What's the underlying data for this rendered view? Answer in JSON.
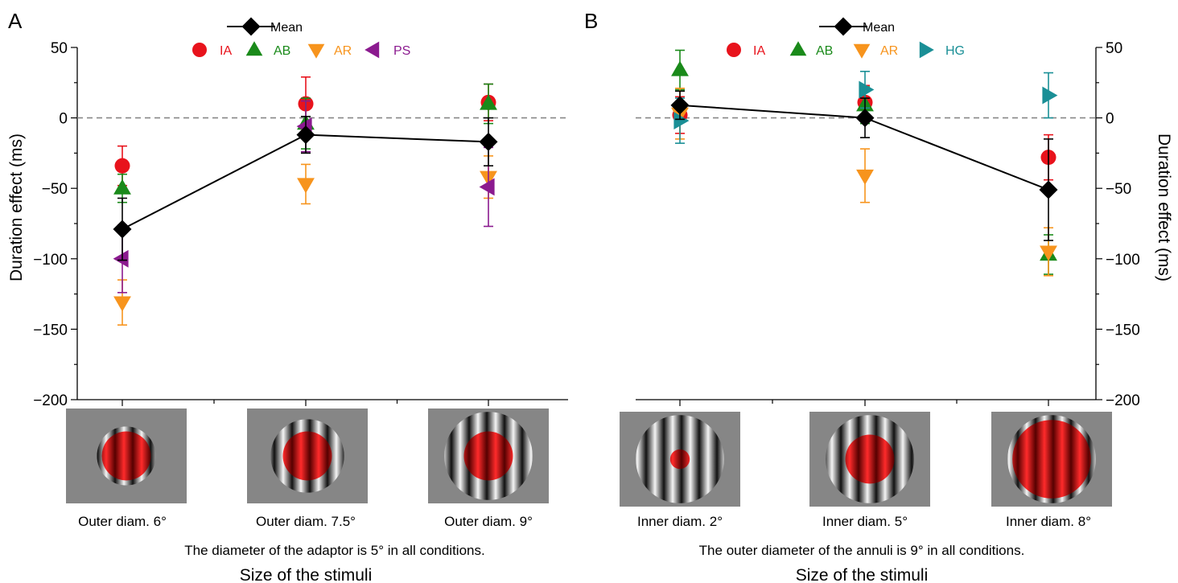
{
  "panels": [
    {
      "letter": "A",
      "conditions": [
        "Outer diam. 6°",
        "Outer diam. 7.5°",
        "Outer diam. 9°"
      ],
      "note": "The diameter of the adaptor is 5° in all conditions.",
      "xlabel": "Size of the stimuli",
      "stimuli": [
        {
          "outer": 6,
          "inner": 5
        },
        {
          "outer": 7.5,
          "inner": 5
        },
        {
          "outer": 9,
          "inner": 5
        }
      ]
    },
    {
      "letter": "B",
      "conditions": [
        "Inner diam. 2°",
        "Inner diam. 5°",
        "Inner diam. 8°"
      ],
      "note": "The outer diameter of the annuli is 9° in all conditions.",
      "xlabel": "Size of the stimuli",
      "stimuli": [
        {
          "outer": 9,
          "inner": 2
        },
        {
          "outer": 9,
          "inner": 5
        },
        {
          "outer": 9,
          "inner": 8
        }
      ]
    }
  ],
  "chart_data": [
    {
      "type": "scatter",
      "panel": "A",
      "title": "",
      "xlabel": "Size of the stimuli",
      "ylabel": "Duration effect (ms)",
      "ylim": [
        -200,
        50
      ],
      "yticks": [
        50,
        0,
        -50,
        -100,
        -150,
        -200
      ],
      "ytick_labels": [
        "50",
        "0",
        "−50",
        "−100",
        "−150",
        "−200"
      ],
      "reference_line": 0,
      "categories": [
        "Outer diam. 6°",
        "Outer diam. 7.5°",
        "Outer diam. 9°"
      ],
      "legend": {
        "placement": "top",
        "mean_label": "Mean"
      },
      "mean": {
        "name": "Mean",
        "color": "#000000",
        "marker": "diamond",
        "values": [
          -79,
          -12,
          -17
        ],
        "err": [
          22,
          13,
          17
        ]
      },
      "series": [
        {
          "name": "IA",
          "color": "#e8131c",
          "marker": "circle",
          "values": [
            -34,
            10,
            11
          ],
          "err": [
            14,
            19,
            13
          ]
        },
        {
          "name": "AB",
          "color": "#1a8a1a",
          "marker": "triangle-up",
          "values": [
            -50,
            -4,
            10
          ],
          "err": [
            10,
            18,
            14
          ]
        },
        {
          "name": "AR",
          "color": "#f7941d",
          "marker": "triangle-down",
          "values": [
            -131,
            -47,
            -42
          ],
          "err": [
            16,
            14,
            15
          ]
        },
        {
          "name": "PS",
          "color": "#8b1a8f",
          "marker": "triangle-left",
          "values": [
            -100,
            -6,
            -49
          ],
          "err": [
            24,
            18,
            28
          ]
        }
      ]
    },
    {
      "type": "scatter",
      "panel": "B",
      "title": "",
      "xlabel": "Size of the stimuli",
      "ylabel": "Duration effect (ms)",
      "ylim": [
        -200,
        50
      ],
      "yticks": [
        50,
        0,
        -50,
        -100,
        -150,
        -200
      ],
      "ytick_labels": [
        "50",
        "0",
        "−50",
        "−100",
        "−150",
        "−200"
      ],
      "reference_line": 0,
      "categories": [
        "Inner diam. 2°",
        "Inner diam. 5°",
        "Inner diam. 8°"
      ],
      "legend": {
        "placement": "top",
        "mean_label": "Mean"
      },
      "mean": {
        "name": "Mean",
        "color": "#000000",
        "marker": "diamond",
        "values": [
          9,
          0,
          -51
        ],
        "err": [
          10,
          14,
          36
        ]
      },
      "series": [
        {
          "name": "IA",
          "color": "#e8131c",
          "marker": "circle",
          "values": [
            2,
            11,
            -28
          ],
          "err": [
            13,
            12,
            16
          ]
        },
        {
          "name": "AB",
          "color": "#1a8a1a",
          "marker": "triangle-up",
          "values": [
            34,
            9,
            -97
          ],
          "err": [
            14,
            13,
            14
          ]
        },
        {
          "name": "AR",
          "color": "#f7941d",
          "marker": "triangle-down",
          "values": [
            3,
            -41,
            -95
          ],
          "err": [
            18,
            19,
            17
          ]
        },
        {
          "name": "HG",
          "color": "#1a8f96",
          "marker": "triangle-right",
          "values": [
            -2,
            20,
            16
          ],
          "err": [
            16,
            13,
            16
          ]
        }
      ]
    }
  ]
}
